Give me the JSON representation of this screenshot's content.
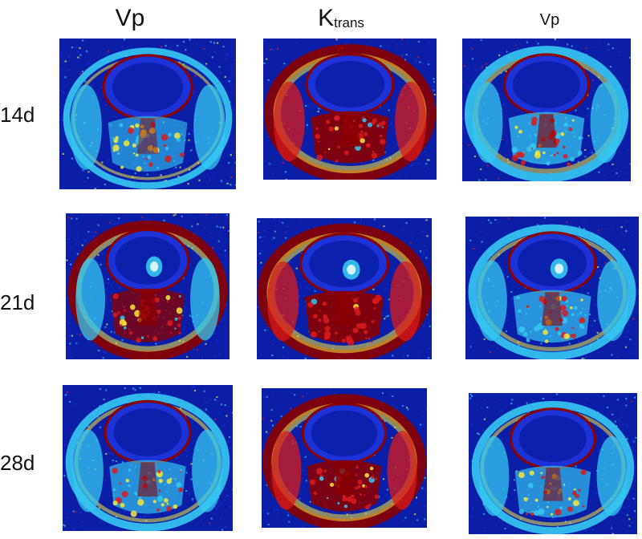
{
  "columns": [
    {
      "main": "Vp",
      "sub": ""
    },
    {
      "main": "K",
      "sub": "trans"
    },
    {
      "main": "Vp",
      "sub": ""
    }
  ],
  "rows": [
    "14d",
    "21d",
    "28d"
  ],
  "colors": {
    "background_blue": "#0a1ea8",
    "deep_blue": "#1b32d6",
    "cyan": "#35c8f0",
    "yellow": "#f3e83a",
    "dark_red": "#8b0000",
    "bright_red": "#d81b1b"
  }
}
